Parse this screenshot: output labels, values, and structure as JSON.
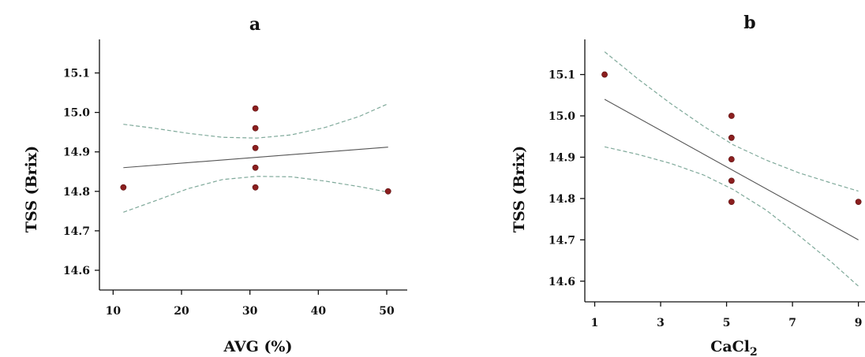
{
  "chart_data": [
    {
      "type": "scatter",
      "panel_label": "a",
      "xlabel": "AVG (%)",
      "ylabel": "TSS (Brix)",
      "xlim": [
        8,
        53
      ],
      "ylim": [
        14.55,
        15.185
      ],
      "x_ticks": [
        10,
        20,
        30,
        40,
        50
      ],
      "y_ticks": [
        14.6,
        14.7,
        14.8,
        14.9,
        15.0,
        15.1
      ],
      "x_tick_labels": [
        "10",
        "20",
        "30",
        "40",
        "50"
      ],
      "y_tick_labels": [
        "14.6",
        "14.7",
        "14.8",
        "14.9",
        "15.0",
        "15.1"
      ],
      "points": [
        {
          "x": 11.5,
          "y": 14.81
        },
        {
          "x": 30.8,
          "y": 15.01
        },
        {
          "x": 30.8,
          "y": 14.96
        },
        {
          "x": 30.8,
          "y": 14.91
        },
        {
          "x": 30.8,
          "y": 14.86
        },
        {
          "x": 30.8,
          "y": 14.81
        },
        {
          "x": 50.2,
          "y": 14.8
        }
      ],
      "fit_line": [
        {
          "x": 11.5,
          "y": 14.86
        },
        {
          "x": 50.2,
          "y": 14.912
        }
      ],
      "ci_upper": [
        {
          "x": 11.5,
          "y": 14.97
        },
        {
          "x": 16,
          "y": 14.96
        },
        {
          "x": 21,
          "y": 14.947
        },
        {
          "x": 26,
          "y": 14.937
        },
        {
          "x": 31,
          "y": 14.935
        },
        {
          "x": 36,
          "y": 14.943
        },
        {
          "x": 41,
          "y": 14.962
        },
        {
          "x": 46,
          "y": 14.99
        },
        {
          "x": 50.2,
          "y": 15.022
        }
      ],
      "ci_lower": [
        {
          "x": 11.5,
          "y": 14.747
        },
        {
          "x": 16,
          "y": 14.775
        },
        {
          "x": 21,
          "y": 14.807
        },
        {
          "x": 26,
          "y": 14.83
        },
        {
          "x": 31,
          "y": 14.838
        },
        {
          "x": 36,
          "y": 14.837
        },
        {
          "x": 41,
          "y": 14.826
        },
        {
          "x": 46,
          "y": 14.812
        },
        {
          "x": 50.2,
          "y": 14.798
        }
      ]
    },
    {
      "type": "scatter",
      "panel_label": "b",
      "xlabel": "CaCl",
      "xlabel_sub": "2",
      "ylabel": "TSS (Brix)",
      "xlim": [
        0.7,
        9.2
      ],
      "ylim": [
        14.55,
        15.185
      ],
      "x_ticks": [
        1,
        3,
        5,
        7,
        9
      ],
      "y_ticks": [
        14.6,
        14.7,
        14.8,
        14.9,
        15.0,
        15.1
      ],
      "x_tick_labels": [
        "1",
        "3",
        "5",
        "7",
        "9"
      ],
      "y_tick_labels": [
        "14.6",
        "14.7",
        "14.8",
        "14.9",
        "15.0",
        "15.1"
      ],
      "points": [
        {
          "x": 1.3,
          "y": 15.1
        },
        {
          "x": 5.15,
          "y": 15.0
        },
        {
          "x": 5.15,
          "y": 14.947
        },
        {
          "x": 5.15,
          "y": 14.895
        },
        {
          "x": 5.15,
          "y": 14.843
        },
        {
          "x": 5.15,
          "y": 14.792
        },
        {
          "x": 9.0,
          "y": 14.792
        }
      ],
      "fit_line": [
        {
          "x": 1.3,
          "y": 15.04
        },
        {
          "x": 9.0,
          "y": 14.7
        }
      ],
      "ci_upper": [
        {
          "x": 1.3,
          "y": 15.155
        },
        {
          "x": 2.3,
          "y": 15.09
        },
        {
          "x": 3.3,
          "y": 15.03
        },
        {
          "x": 4.3,
          "y": 14.975
        },
        {
          "x": 5.2,
          "y": 14.93
        },
        {
          "x": 6.2,
          "y": 14.893
        },
        {
          "x": 7.2,
          "y": 14.862
        },
        {
          "x": 8.2,
          "y": 14.837
        },
        {
          "x": 9.0,
          "y": 14.818
        }
      ],
      "ci_lower": [
        {
          "x": 1.3,
          "y": 14.925
        },
        {
          "x": 2.3,
          "y": 14.907
        },
        {
          "x": 3.3,
          "y": 14.885
        },
        {
          "x": 4.3,
          "y": 14.857
        },
        {
          "x": 5.2,
          "y": 14.822
        },
        {
          "x": 6.2,
          "y": 14.772
        },
        {
          "x": 7.2,
          "y": 14.71
        },
        {
          "x": 8.2,
          "y": 14.645
        },
        {
          "x": 9.0,
          "y": 14.588
        }
      ]
    }
  ]
}
